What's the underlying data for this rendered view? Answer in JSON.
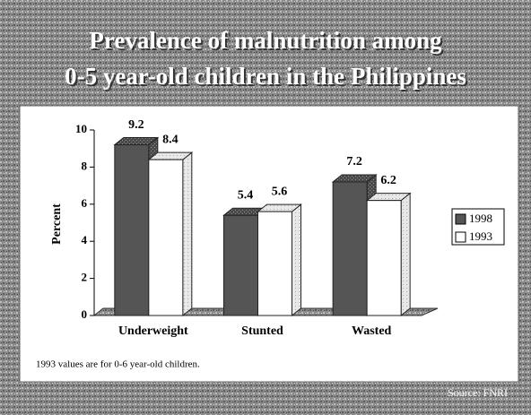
{
  "chart_data": {
    "type": "bar3d",
    "title": [
      "Prevalence of malnutrition among",
      "0-5 year-old children in the Philippines"
    ],
    "y_label": "Percent",
    "categories": [
      "Underweight",
      "Stunted",
      "Wasted"
    ],
    "series": [
      {
        "name": "1998",
        "color": "#555555",
        "values": [
          9.2,
          5.4,
          7.2
        ]
      },
      {
        "name": "1993",
        "color": "#ffffff",
        "values": [
          8.4,
          5.6,
          6.2
        ]
      }
    ],
    "ylim": [
      0,
      10
    ],
    "yticks": [
      0,
      2,
      4,
      6,
      8,
      10
    ],
    "legend": "right",
    "footnote": "1993 values are for 0-6 year-old children.",
    "source": "Source: FNRI"
  }
}
